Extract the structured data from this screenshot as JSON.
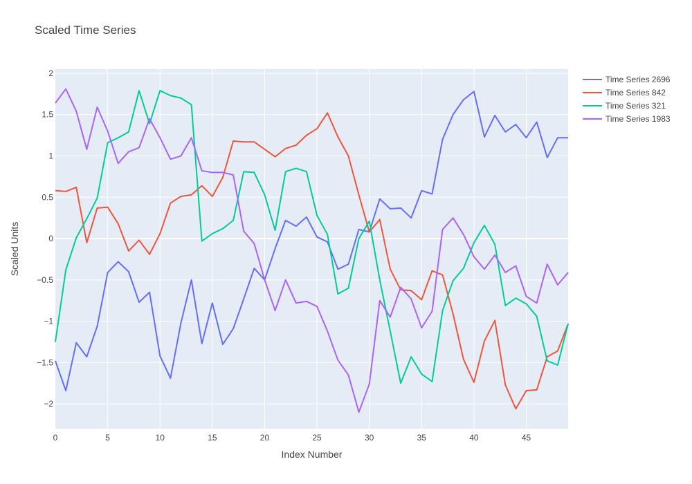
{
  "chart_data": {
    "type": "line",
    "title": "Scaled Time Series",
    "xlabel": "Index Number",
    "ylabel": "Scaled Units",
    "xlim": [
      0,
      49
    ],
    "ylim": [
      -2.3,
      2.05
    ],
    "xticks": [
      0,
      5,
      10,
      15,
      20,
      25,
      30,
      35,
      40,
      45
    ],
    "yticks": [
      -2,
      -1.5,
      -1,
      -0.5,
      0,
      0.5,
      1,
      1.5,
      2
    ],
    "ytick_labels": [
      "−2",
      "−1.5",
      "−1",
      "−0.5",
      "0",
      "0.5",
      "1",
      "1.5",
      "2"
    ],
    "grid": true,
    "legend_position": "top-right",
    "background": "#e5ecf6",
    "series": [
      {
        "name": "Time Series 2696",
        "color": "#636efa",
        "values": [
          -1.48,
          -1.84,
          -1.26,
          -1.43,
          -1.06,
          -0.41,
          -0.28,
          -0.4,
          -0.77,
          -0.65,
          -1.42,
          -1.69,
          -1.02,
          -0.5,
          -1.27,
          -0.78,
          -1.28,
          -1.09,
          -0.73,
          -0.36,
          -0.5,
          -0.12,
          0.22,
          0.15,
          0.26,
          0.02,
          -0.04,
          -0.37,
          -0.31,
          0.11,
          0.08,
          0.48,
          0.36,
          0.37,
          0.25,
          0.58,
          0.54,
          1.2,
          1.5,
          1.68,
          1.78,
          1.23,
          1.49,
          1.29,
          1.38,
          1.22,
          1.41,
          0.98,
          1.22,
          1.22
        ]
      },
      {
        "name": "Time Series 842",
        "color": "#ef553b",
        "values": [
          0.58,
          0.57,
          0.62,
          -0.05,
          0.37,
          0.38,
          0.18,
          -0.15,
          -0.02,
          -0.19,
          0.06,
          0.43,
          0.51,
          0.53,
          0.64,
          0.51,
          0.74,
          1.18,
          1.17,
          1.17,
          1.08,
          0.99,
          1.09,
          1.13,
          1.25,
          1.33,
          1.52,
          1.23,
          1.0,
          0.53,
          0.08,
          0.23,
          -0.37,
          -0.62,
          -0.63,
          -0.74,
          -0.39,
          -0.44,
          -0.91,
          -1.46,
          -1.74,
          -1.24,
          -0.99,
          -1.77,
          -2.06,
          -1.84,
          -1.83,
          -1.43,
          -1.36,
          -1.03
        ]
      },
      {
        "name": "Time Series 321",
        "color": "#00cc96",
        "values": [
          -1.25,
          -0.38,
          0.01,
          0.24,
          0.49,
          1.16,
          1.22,
          1.29,
          1.79,
          1.39,
          1.79,
          1.73,
          1.7,
          1.62,
          -0.03,
          0.06,
          0.12,
          0.22,
          0.81,
          0.8,
          0.53,
          0.1,
          0.81,
          0.85,
          0.81,
          0.28,
          0.05,
          -0.67,
          -0.6,
          0.0,
          0.21,
          -0.5,
          -1.12,
          -1.75,
          -1.43,
          -1.64,
          -1.73,
          -0.87,
          -0.51,
          -0.36,
          -0.05,
          0.16,
          -0.07,
          -0.81,
          -0.72,
          -0.79,
          -0.94,
          -1.48,
          -1.53,
          -1.03
        ]
      },
      {
        "name": "Time Series 1983",
        "color": "#ab63fa",
        "values": [
          1.64,
          1.81,
          1.54,
          1.08,
          1.59,
          1.3,
          0.91,
          1.05,
          1.1,
          1.45,
          1.22,
          0.96,
          1.0,
          1.22,
          0.82,
          0.8,
          0.8,
          0.77,
          0.09,
          -0.06,
          -0.5,
          -0.87,
          -0.5,
          -0.78,
          -0.76,
          -0.82,
          -1.12,
          -1.47,
          -1.65,
          -2.1,
          -1.76,
          -0.75,
          -0.95,
          -0.59,
          -0.73,
          -1.08,
          -0.88,
          0.11,
          0.25,
          0.05,
          -0.22,
          -0.37,
          -0.2,
          -0.41,
          -0.33,
          -0.7,
          -0.78,
          -0.31,
          -0.56,
          -0.41
        ]
      }
    ]
  }
}
